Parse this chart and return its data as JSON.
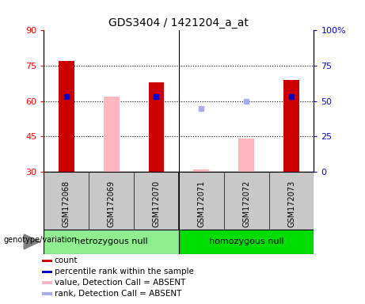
{
  "title": "GDS3404 / 1421204_a_at",
  "samples": [
    "GSM172068",
    "GSM172069",
    "GSM172070",
    "GSM172071",
    "GSM172072",
    "GSM172073"
  ],
  "ylim_left": [
    30,
    90
  ],
  "ylim_right": [
    0,
    100
  ],
  "yticks_left": [
    30,
    45,
    60,
    75,
    90
  ],
  "yticks_right": [
    0,
    25,
    50,
    75,
    100
  ],
  "red_bars": [
    77,
    null,
    68,
    null,
    null,
    69
  ],
  "pink_bars": [
    null,
    62,
    null,
    31,
    44,
    null
  ],
  "blue_squares": [
    62,
    null,
    62,
    null,
    null,
    62
  ],
  "light_blue_squares": [
    null,
    null,
    null,
    57,
    60,
    null
  ],
  "groups": [
    {
      "label": "hetrozygous null",
      "samples": [
        0,
        1,
        2
      ],
      "color": "#90EE90"
    },
    {
      "label": "homozygous null",
      "samples": [
        3,
        4,
        5
      ],
      "color": "#00DD00"
    }
  ],
  "bar_width": 0.35,
  "red_color": "#CC0000",
  "pink_color": "#FFB6C1",
  "blue_color": "#0000CC",
  "light_blue_color": "#AAAAEE",
  "background_color": "#FFFFFF",
  "label_area_color": "#C8C8C8",
  "legend_entries": [
    {
      "color": "#CC0000",
      "label": "count"
    },
    {
      "color": "#0000CC",
      "label": "percentile rank within the sample"
    },
    {
      "color": "#FFB6C1",
      "label": "value, Detection Call = ABSENT"
    },
    {
      "color": "#AAAAEE",
      "label": "rank, Detection Call = ABSENT"
    }
  ]
}
